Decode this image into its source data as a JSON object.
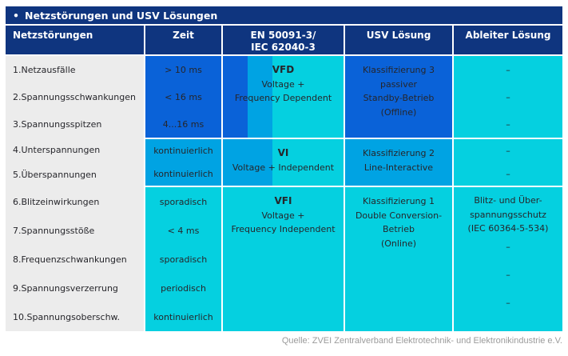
{
  "colors": {
    "navy": "#0f357f",
    "blue1": "#0a62d8",
    "blue2": "#00a3e3",
    "blue3": "#05d0e0",
    "panel_gray": "#ececec",
    "text_dark": "#26262b",
    "text_light": "#ffffff",
    "caption_gray": "#9b9b9b"
  },
  "title": {
    "bullet": "•",
    "text": "Netzstörungen und USV Lösungen"
  },
  "headers": {
    "netzstoerungen": "Netzstörungen",
    "zeit": "Zeit",
    "norm_line1": "EN 50091-3/",
    "norm_line2": "IEC 62040-3",
    "usv": "USV Lösung",
    "ableiter": "Ableiter Lösung"
  },
  "disturbances": [
    "1.Netzausfälle",
    "2.Spannungsschwankungen",
    "3.Spannungsspitzen",
    "4.Unterspannungen",
    "5.Überspannungen",
    "6.Blitzeinwirkungen",
    "7.Spannungsstöße",
    "8.Frequenzschwankungen",
    "9.Spannungsverzerrung",
    "10.Spannungsoberschw."
  ],
  "groups": [
    {
      "zeit": [
        "> 10 ms",
        "< 16 ms",
        "4...16 ms"
      ],
      "class_code": "VFD",
      "class_lines": [
        "Voltage +",
        "Frequency Dependent"
      ],
      "usv": [
        "Klassifizierung 3",
        "passiver",
        "Standby-Betrieb",
        "(Offline)"
      ],
      "ableiter": [
        "–",
        "–",
        "–"
      ]
    },
    {
      "zeit": [
        "kontinuierlich",
        "kontinuierlich"
      ],
      "class_code": "VI",
      "class_lines": [
        "Voltage + Independent"
      ],
      "usv": [
        "Klassifizierung 2",
        "Line-Interactive"
      ],
      "ableiter": [
        "–",
        "–"
      ]
    },
    {
      "zeit": [
        "sporadisch",
        "< 4 ms",
        "sporadisch",
        "periodisch",
        "kontinuierlich"
      ],
      "class_code": "VFI",
      "class_lines": [
        "Voltage +",
        "Frequency Independent"
      ],
      "usv": [
        "Klassifizierung 1",
        "Double Conversion-",
        "Betrieb",
        "(Online)"
      ],
      "ableiter_text": [
        "Blitz- und Über-",
        "spannungsschutz",
        "(IEC 60364-5-534)"
      ],
      "ableiter_dashes": [
        "–",
        "–",
        "–"
      ]
    }
  ],
  "caption": "Quelle: ZVEI Zentralverband Elektrotechnik- und Elektronikindustrie e.V.",
  "chart_data": {
    "type": "table",
    "title": "Netzstörungen und USV Lösungen",
    "columns": [
      "Netzstörungen",
      "Zeit",
      "EN 50091-3/ IEC 62040-3",
      "USV Lösung",
      "Ableiter Lösung"
    ],
    "rows": [
      [
        "1.Netzausfälle",
        "> 10 ms",
        "VFD Voltage + Frequency Dependent",
        "Klassifizierung 3 passiver Standby-Betrieb (Offline)",
        "–"
      ],
      [
        "2.Spannungsschwankungen",
        "< 16 ms",
        "VFD Voltage + Frequency Dependent",
        "Klassifizierung 3 passiver Standby-Betrieb (Offline)",
        "–"
      ],
      [
        "3.Spannungsspitzen",
        "4...16 ms",
        "VFD Voltage + Frequency Dependent",
        "Klassifizierung 3 passiver Standby-Betrieb (Offline)",
        "–"
      ],
      [
        "4.Unterspannungen",
        "kontinuierlich",
        "VI Voltage + Independent",
        "Klassifizierung 2 Line-Interactive",
        "–"
      ],
      [
        "5.Überspannungen",
        "kontinuierlich",
        "VI Voltage + Independent",
        "Klassifizierung 2 Line-Interactive",
        "–"
      ],
      [
        "6.Blitzeinwirkungen",
        "sporadisch",
        "VFI Voltage + Frequency Independent",
        "Klassifizierung 1 Double Conversion-Betrieb (Online)",
        "Blitz- und Überspannungsschutz (IEC 60364-5-534)"
      ],
      [
        "7.Spannungsstöße",
        "< 4 ms",
        "VFI Voltage + Frequency Independent",
        "Klassifizierung 1 Double Conversion-Betrieb (Online)",
        "Blitz- und Überspannungsschutz (IEC 60364-5-534)"
      ],
      [
        "8.Frequenzschwankungen",
        "sporadisch",
        "VFI Voltage + Frequency Independent",
        "Klassifizierung 1 Double Conversion-Betrieb (Online)",
        "–"
      ],
      [
        "9.Spannungsverzerrung",
        "periodisch",
        "VFI Voltage + Frequency Independent",
        "Klassifizierung 1 Double Conversion-Betrieb (Online)",
        "–"
      ],
      [
        "10.Spannungsoberschw.",
        "kontinuierlich",
        "VFI Voltage + Frequency Independent",
        "Klassifizierung 1 Double Conversion-Betrieb (Online)",
        "–"
      ]
    ],
    "source": "Quelle: ZVEI Zentralverband Elektrotechnik- und Elektronikindustrie e.V."
  }
}
